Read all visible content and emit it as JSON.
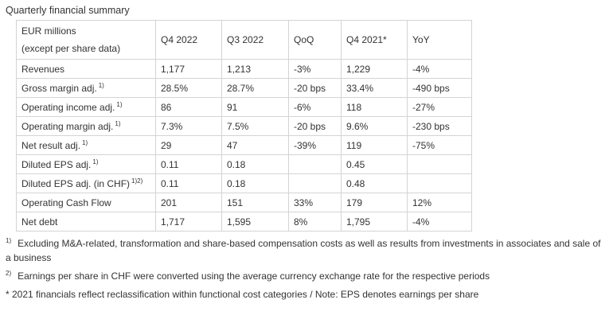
{
  "title": "Quarterly financial summary",
  "table": {
    "header": {
      "label_line1": "EUR millions",
      "label_line2": "(except per share data)",
      "columns": [
        "Q4 2022",
        "Q3 2022",
        "QoQ",
        "Q4 2021*",
        "YoY"
      ]
    },
    "rows": [
      {
        "label": "Revenues",
        "ref": "",
        "values": [
          "1,177",
          "1,213",
          "-3%",
          "1,229",
          "-4%"
        ]
      },
      {
        "label": "Gross margin adj.",
        "ref": "1)",
        "values": [
          "28.5%",
          "28.7%",
          "-20 bps",
          "33.4%",
          "-490 bps"
        ]
      },
      {
        "label": "Operating income adj.",
        "ref": "1)",
        "values": [
          "86",
          "91",
          "-6%",
          "118",
          "-27%"
        ]
      },
      {
        "label": "Operating margin adj.",
        "ref": "1)",
        "values": [
          "7.3%",
          "7.5%",
          "-20 bps",
          "9.6%",
          "-230 bps"
        ]
      },
      {
        "label": "Net result adj.",
        "ref": "1)",
        "values": [
          "29",
          "47",
          "-39%",
          "119",
          "-75%"
        ]
      },
      {
        "label": "Diluted EPS adj.",
        "ref": "1)",
        "values": [
          "0.11",
          "0.18",
          "",
          "0.45",
          ""
        ]
      },
      {
        "label": "Diluted EPS adj. (in CHF)",
        "ref": "1)2)",
        "values": [
          "0.11",
          "0.18",
          "",
          "0.48",
          ""
        ]
      },
      {
        "label": "Operating Cash Flow",
        "ref": "",
        "values": [
          "201",
          "151",
          "33%",
          "179",
          "12%"
        ]
      },
      {
        "label": "Net debt",
        "ref": "",
        "values": [
          "1,717",
          "1,595",
          "8%",
          "1,795",
          "-4%"
        ]
      }
    ]
  },
  "footnotes": [
    {
      "marker": "1)",
      "text": "Excluding M&A-related, transformation and share-based compensation costs as well as results from investments in associates and sale of a business"
    },
    {
      "marker": "2)",
      "text": "Earnings per share in CHF were converted using the average currency exchange rate for the respective periods"
    },
    {
      "marker": "",
      "text": "* 2021 financials reflect reclassification within functional cost categories / Note: EPS denotes earnings per share"
    }
  ]
}
